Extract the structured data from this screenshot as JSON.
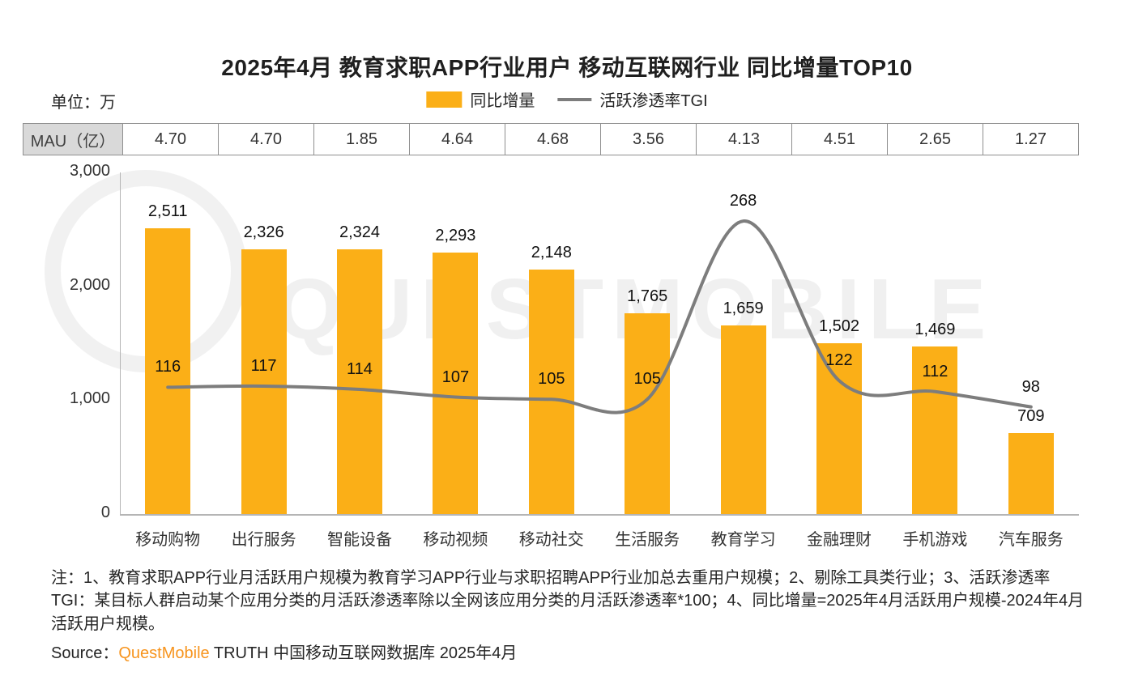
{
  "title": "2025年4月 教育求职APP行业用户 移动互联网行业 同比增量TOP10",
  "unit_label": "单位：万",
  "legend": {
    "bar_label": "同比增量",
    "line_label": "活跃渗透率TGI"
  },
  "mau_row": {
    "header": "MAU（亿）",
    "values": [
      "4.70",
      "4.70",
      "1.85",
      "4.64",
      "4.68",
      "3.56",
      "4.13",
      "4.51",
      "2.65",
      "1.27"
    ]
  },
  "chart_data": {
    "type": "bar",
    "title": "2025年4月 教育求职APP行业用户 移动互联网行业 同比增量TOP10",
    "categories": [
      "移动购物",
      "出行服务",
      "智能设备",
      "移动视频",
      "移动社交",
      "生活服务",
      "教育学习",
      "金融理财",
      "手机游戏",
      "汽车服务"
    ],
    "series": [
      {
        "name": "同比增量",
        "type": "bar",
        "unit": "万",
        "values": [
          2511,
          2326,
          2324,
          2293,
          2148,
          1765,
          1659,
          1502,
          1469,
          709
        ]
      },
      {
        "name": "活跃渗透率TGI",
        "type": "line",
        "values": [
          116,
          117,
          114,
          107,
          105,
          105,
          268,
          122,
          112,
          98
        ]
      }
    ],
    "xlabel": "",
    "ylabel": "",
    "ylim": [
      0,
      3000
    ],
    "ytick_values": [
      0,
      1000,
      2000,
      3000
    ],
    "grid": false,
    "legend_position": "top",
    "tgi_plot_multiplier": 9.6,
    "colors": {
      "bar": "#FBAF17",
      "line": "#7D7D7D"
    }
  },
  "notes": "注：1、教育求职APP行业月活跃用户规模为教育学习APP行业与求职招聘APP行业加总去重用户规模；2、剔除工具类行业；3、活跃渗透率TGI：某目标人群启动某个应用分类的月活跃渗透率除以全网该应用分类的月活跃渗透率*100；4、同比增量=2025年4月活跃用户规模-2024年4月活跃用户规模。",
  "source": {
    "prefix": "Source：",
    "brand": "QuestMobile",
    "suffix": " TRUTH 中国移动互联网数据库 2025年4月"
  },
  "watermark": "QUESTMOBILE"
}
